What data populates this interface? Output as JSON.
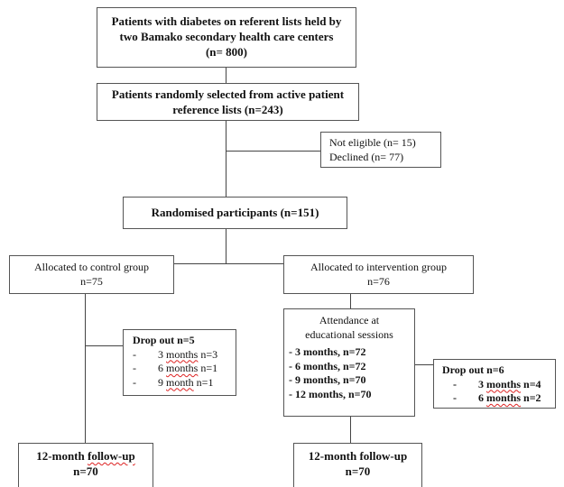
{
  "boxes": {
    "population": {
      "line1": "Patients with diabetes on referent lists held by",
      "line2": "two Bamako secondary health care centers",
      "line3": "(n= 800)"
    },
    "selected": {
      "line1": "Patients randomly selected from active patient",
      "line2": "reference lists (n=243)"
    },
    "excluded": {
      "line1": "Not eligible (n= 15)",
      "line2": "Declined (n= 77)"
    },
    "randomised": {
      "line1": "Randomised participants (n=151)"
    },
    "control": {
      "line1": "Allocated to control group",
      "line2": "n=75"
    },
    "intervention": {
      "line1": "Allocated to intervention group",
      "line2": "n=76"
    },
    "dropout_control": {
      "title": "Drop out n=5",
      "items": [
        {
          "dash": "-",
          "num": "3",
          "unit": "months",
          "rest": "n=3"
        },
        {
          "dash": "-",
          "num": "6",
          "unit": "months",
          "rest": "n=1"
        },
        {
          "dash": "-",
          "num": "9",
          "unit": "month",
          "rest": "n=1"
        }
      ]
    },
    "attendance": {
      "line1": "Attendance at",
      "line2": "educational sessions",
      "items": [
        "- 3 months, n=72",
        "- 6 months, n=72",
        "- 9 months, n=70",
        "- 12 months, n=70"
      ]
    },
    "dropout_intervention": {
      "title": "Drop out n=6",
      "items": [
        {
          "dash": "-",
          "num": "3",
          "unit": "months",
          "rest": "n=4"
        },
        {
          "dash": "-",
          "num": "6",
          "unit": "months",
          "rest": "n=2"
        }
      ]
    },
    "followup_control": {
      "pre": "12-month ",
      "under": "follow-up",
      "line2": "n=70"
    },
    "followup_intervention": {
      "line1": "12-month follow-up",
      "line2": "n=70"
    }
  }
}
